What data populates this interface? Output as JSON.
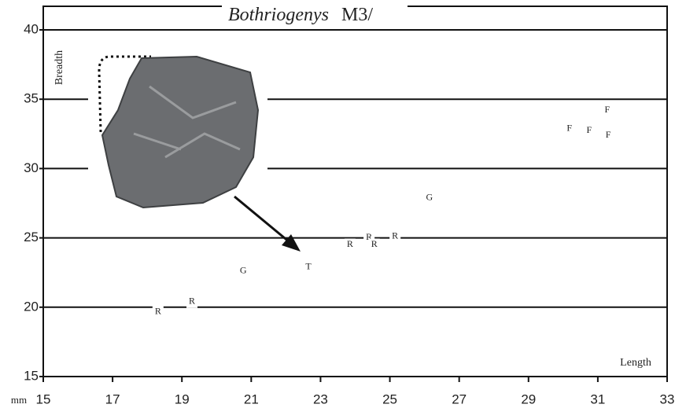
{
  "chart_data": {
    "type": "scatter",
    "title": {
      "genus": "Bothriogenys",
      "tooth": "M3/"
    },
    "x_label": "Length",
    "y_label": "Breadth",
    "x_unit": "mm",
    "x": [
      31.27,
      30.18,
      30.75,
      31.3,
      26.14,
      25.15,
      24.4,
      24.55,
      23.85,
      22.65,
      20.77,
      19.29,
      18.31
    ],
    "y": [
      34.2,
      32.86,
      32.74,
      32.4,
      27.87,
      25.1,
      25.03,
      24.5,
      24.5,
      22.9,
      22.6,
      20.4,
      19.65
    ],
    "labels": [
      "F",
      "F",
      "F",
      "F",
      "G",
      "R",
      "R",
      "R",
      "R",
      "T",
      "G",
      "R",
      "R"
    ],
    "color": "#444444",
    "xlim": [
      15,
      33
    ],
    "ylim": [
      15,
      40
    ],
    "xticks": [
      15,
      17,
      19,
      21,
      23,
      25,
      27,
      29,
      31,
      33
    ],
    "yticks": [
      15,
      20,
      25,
      30,
      35,
      40
    ],
    "grid": true
  }
}
